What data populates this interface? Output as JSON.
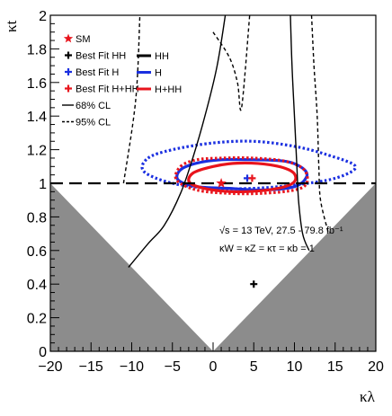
{
  "chart_data": {
    "type": "contour",
    "xlabel": "κλ",
    "ylabel": "κt",
    "xlim": [
      -20,
      20
    ],
    "ylim": [
      0,
      2
    ],
    "x_ticks": [
      "−20",
      "−15",
      "−10",
      "−5",
      "0",
      "5",
      "10",
      "15",
      "20"
    ],
    "y_ticks": [
      "0",
      "0.2",
      "0.4",
      "0.6",
      "0.8",
      "1",
      "1.2",
      "1.4",
      "1.6",
      "1.8",
      "2"
    ],
    "legend": {
      "markers": [
        {
          "label": "SM",
          "symbol": "star",
          "color": "#e8141c"
        },
        {
          "label": "Best Fit HH",
          "symbol": "plus",
          "color": "#000000"
        },
        {
          "label": "Best Fit H",
          "symbol": "plus",
          "color": "#1a2fe0"
        },
        {
          "label": "Best Fit H+HH",
          "symbol": "plus",
          "color": "#e8141c"
        },
        {
          "label": "68% CL",
          "symbol": "solid-line",
          "color": "#000000"
        },
        {
          "label": "95% CL",
          "symbol": "dashed-line",
          "color": "#000000"
        }
      ],
      "lines": [
        {
          "label": "HH",
          "color": "#000000"
        },
        {
          "label": "H",
          "color": "#1a2fe0"
        },
        {
          "label": "H+HH",
          "color": "#e8141c"
        }
      ]
    },
    "annotation": {
      "energy": "√s = 13 TeV, 27.5 - 79.8 fb⁻¹",
      "couplings": "κW = κZ = κτ = κb = 1"
    },
    "reference_line_y": 1,
    "excluded_region": "below |κλ|/20 (kinematically forbidden triangles shaded gray)",
    "points": {
      "SM": [
        1,
        1
      ],
      "best_fit_HH": [
        5,
        0.4
      ],
      "best_fit_H": [
        4.2,
        1.03
      ],
      "best_fit_HH_H": [
        4.8,
        1.03
      ]
    },
    "series": [
      {
        "name": "H 68% CL",
        "color": "#1a2fe0",
        "style": "solid",
        "points": [
          [
            -4,
            1.08
          ],
          [
            -2,
            1.12
          ],
          [
            1,
            1.14
          ],
          [
            5,
            1.14
          ],
          [
            9,
            1.13
          ],
          [
            11,
            1.09
          ],
          [
            11.5,
            1.04
          ],
          [
            10,
            0.98
          ],
          [
            6,
            0.96
          ],
          [
            2,
            0.97
          ],
          [
            -2,
            0.98
          ],
          [
            -4.3,
            1.02
          ],
          [
            -4,
            1.08
          ]
        ]
      },
      {
        "name": "H 95% CL",
        "color": "#1a2fe0",
        "style": "dotted",
        "points": [
          [
            -8,
            1.15
          ],
          [
            -5,
            1.2
          ],
          [
            0,
            1.24
          ],
          [
            5,
            1.25
          ],
          [
            10,
            1.22
          ],
          [
            14,
            1.17
          ],
          [
            17.5,
            1.1
          ],
          [
            15,
            1.03
          ],
          [
            10,
            0.99
          ],
          [
            5,
            0.97
          ],
          [
            0,
            0.97
          ],
          [
            -5,
            1.0
          ],
          [
            -8.5,
            1.07
          ],
          [
            -8,
            1.15
          ]
        ]
      },
      {
        "name": "H+HH 68% CL",
        "color": "#e8141c",
        "style": "solid",
        "points": [
          [
            -2.5,
            1.06
          ],
          [
            0,
            1.1
          ],
          [
            3,
            1.12
          ],
          [
            7,
            1.11
          ],
          [
            9.7,
            1.07
          ],
          [
            10,
            1.01
          ],
          [
            8,
            0.97
          ],
          [
            4,
            0.95
          ],
          [
            0,
            0.96
          ],
          [
            -2.8,
            1.0
          ],
          [
            -2.5,
            1.06
          ]
        ]
      },
      {
        "name": "H+HH 95% CL",
        "color": "#e8141c",
        "style": "dotted",
        "points": [
          [
            -4,
            1.1
          ],
          [
            -2,
            1.14
          ],
          [
            1,
            1.15
          ],
          [
            5,
            1.15
          ],
          [
            9,
            1.13
          ],
          [
            11.2,
            1.08
          ],
          [
            11.5,
            1.0
          ],
          [
            10,
            0.96
          ],
          [
            6,
            0.94
          ],
          [
            2,
            0.94
          ],
          [
            -2,
            0.96
          ],
          [
            -4.5,
            1.02
          ],
          [
            -4,
            1.1
          ]
        ]
      },
      {
        "name": "HH 68% CL left",
        "color": "#000000",
        "style": "solid",
        "points": [
          [
            -10.4,
            0.5
          ],
          [
            -8,
            0.64
          ],
          [
            -6,
            0.75
          ],
          [
            -4,
            0.94
          ],
          [
            -2.5,
            1.15
          ],
          [
            -1,
            1.4
          ],
          [
            0.5,
            1.7
          ],
          [
            1.5,
            2.0
          ]
        ]
      },
      {
        "name": "HH 68% CL right",
        "color": "#000000",
        "style": "solid",
        "points": [
          [
            9.5,
            2.0
          ],
          [
            9.7,
            1.7
          ],
          [
            10,
            1.4
          ],
          [
            10.3,
            1.1
          ],
          [
            10.5,
            0.9
          ],
          [
            11,
            0.7
          ],
          [
            11.8,
            0.6
          ]
        ]
      },
      {
        "name": "HH 95% CL left",
        "color": "#000000",
        "style": "dotted",
        "points": [
          [
            -11,
            1.0
          ],
          [
            -9.5,
            1.5
          ],
          [
            -9,
            2.0
          ]
        ]
      },
      {
        "name": "HH 95% CL right",
        "color": "#000000",
        "style": "dotted",
        "points": [
          [
            12.1,
            2.0
          ],
          [
            12.4,
            1.7
          ],
          [
            12.8,
            1.4
          ],
          [
            13,
            1.1
          ],
          [
            13.2,
            0.9
          ],
          [
            14.2,
            0.7
          ]
        ]
      },
      {
        "name": "HH 95% CL upper",
        "color": "#000000",
        "style": "dotted",
        "points": [
          [
            0,
            1.9
          ],
          [
            2,
            1.75
          ],
          [
            3,
            1.6
          ],
          [
            3.5,
            1.45
          ],
          [
            4.5,
            2.0
          ]
        ]
      }
    ]
  }
}
